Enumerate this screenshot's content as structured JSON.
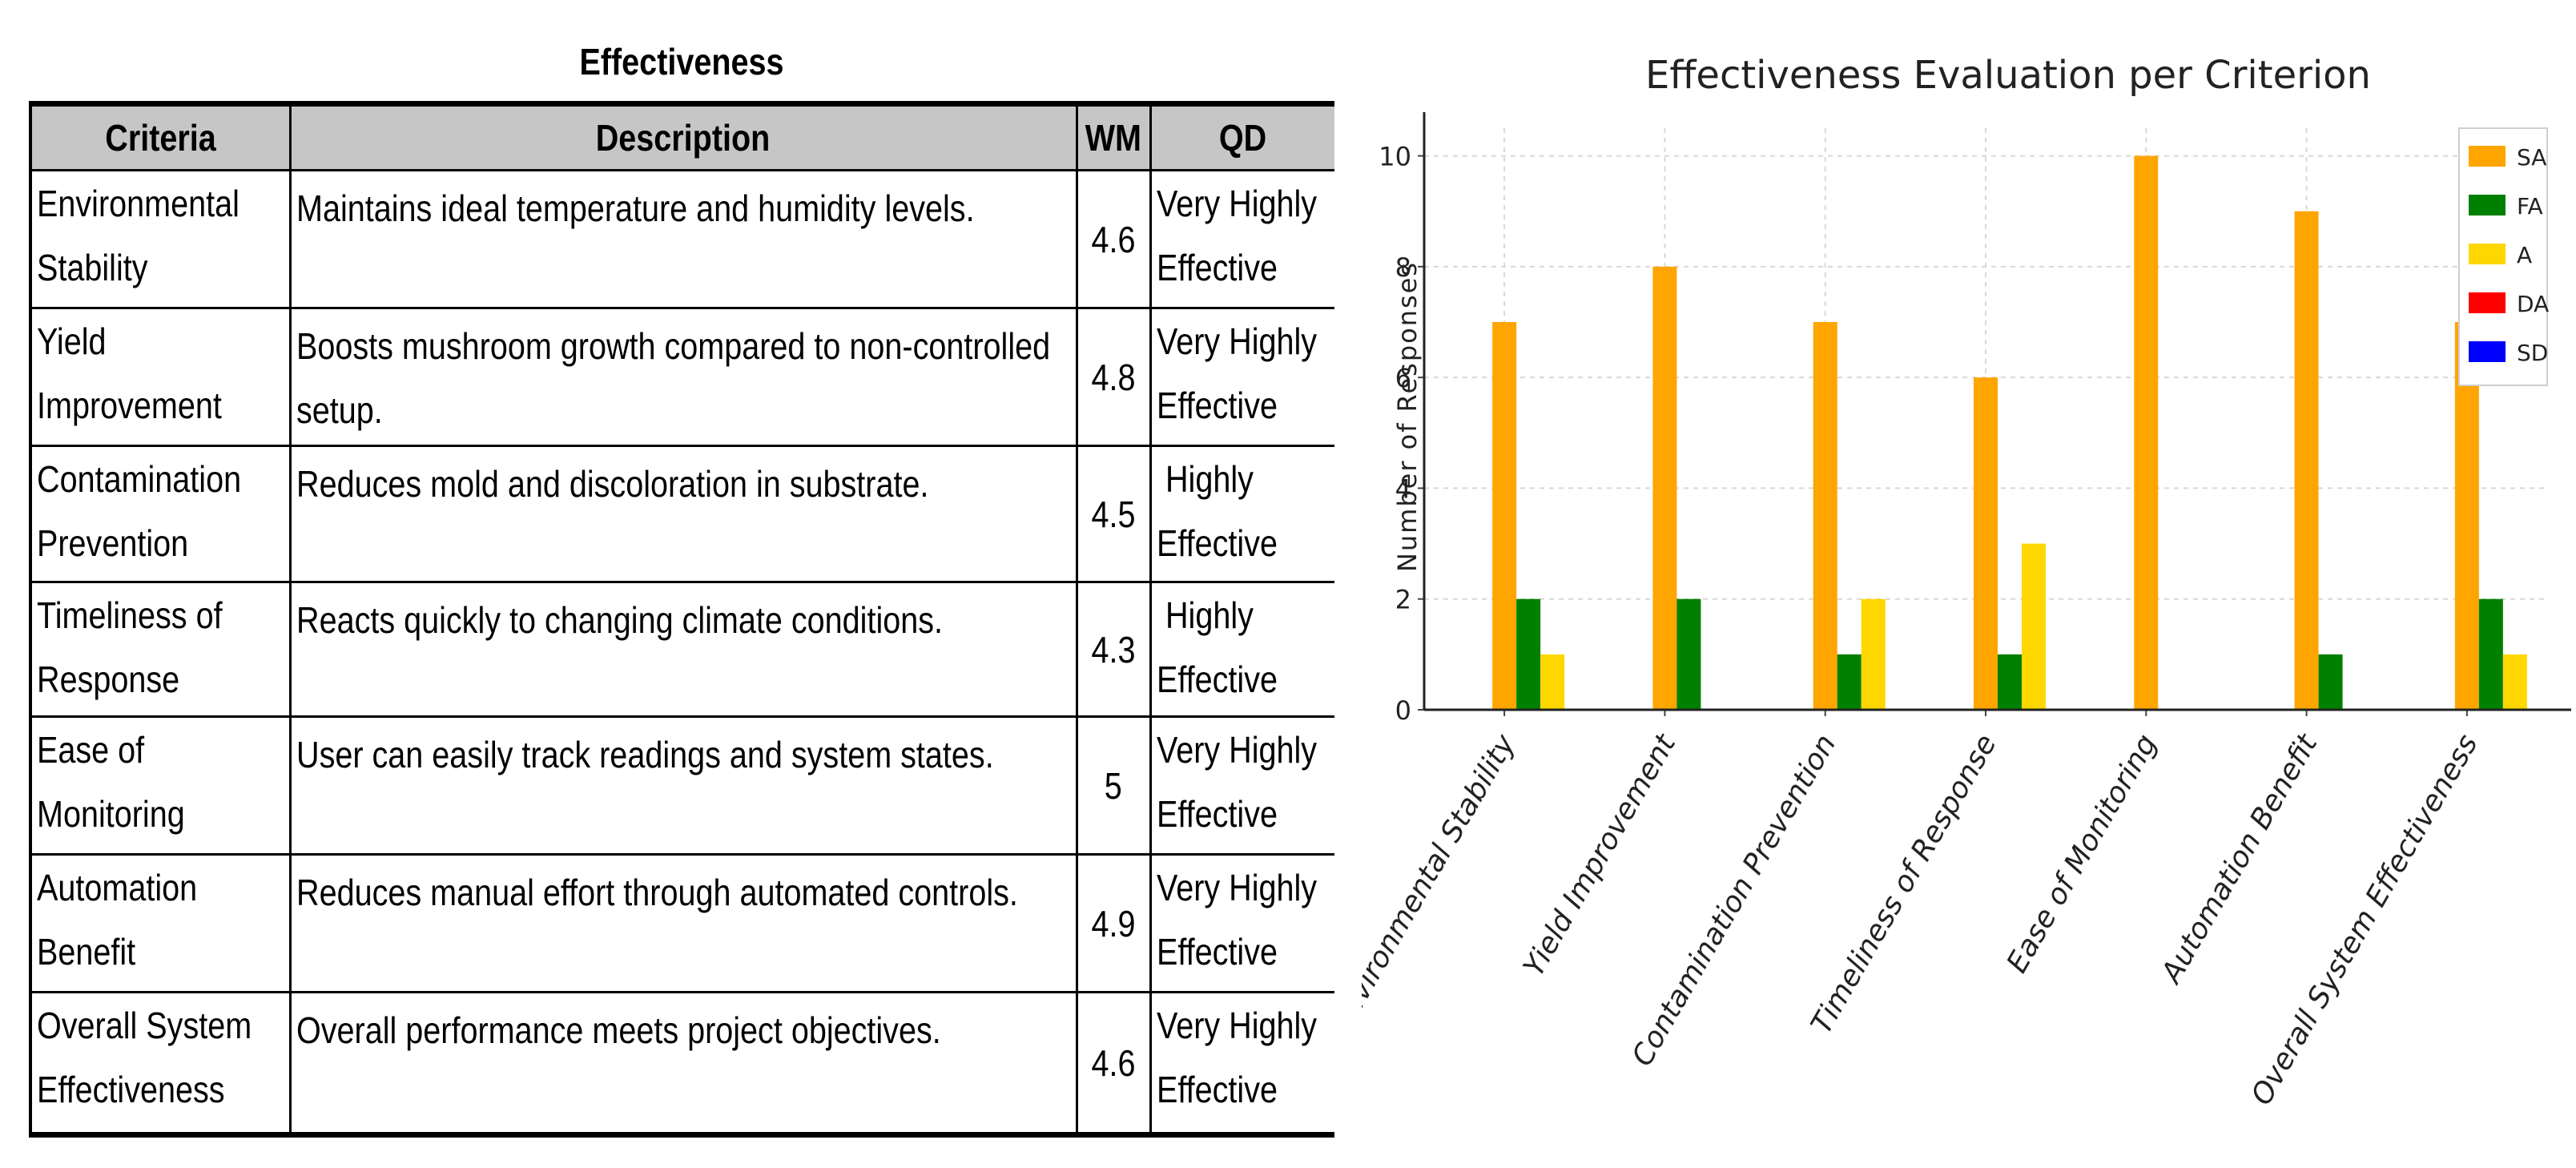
{
  "table": {
    "title": "Effectiveness",
    "headers": {
      "criteria": "Criteria",
      "description": "Description",
      "wm": "WM",
      "qd": "QD"
    },
    "rows": [
      {
        "criteria_line1": "Environmental",
        "criteria_line2": "Stability",
        "description": "Maintains ideal temperature and humidity levels.",
        "wm": "4.6",
        "qd_line1": "Very Highly",
        "qd_line2": "Effective"
      },
      {
        "criteria_line1": "Yield",
        "criteria_line2": "Improvement",
        "description": "Boosts mushroom growth compared to non-controlled setup.",
        "wm": "4.8",
        "qd_line1": "Very Highly",
        "qd_line2": "Effective"
      },
      {
        "criteria_line1": "Contamination",
        "criteria_line2": "Prevention",
        "description": "Reduces mold and discoloration in substrate.",
        "wm": "4.5",
        "qd_line1": " Highly",
        "qd_line2": "Effective"
      },
      {
        "criteria_line1": "Timeliness of",
        "criteria_line2": "Response",
        "description": "Reacts quickly to changing climate conditions.",
        "wm": "4.3",
        "qd_line1": " Highly",
        "qd_line2": "Effective"
      },
      {
        "criteria_line1": "Ease of",
        "criteria_line2": "Monitoring",
        "description": "User can easily track readings and system states.",
        "wm": "5",
        "qd_line1": "Very Highly",
        "qd_line2": "Effective"
      },
      {
        "criteria_line1": "Automation",
        "criteria_line2": "Benefit",
        "description": "Reduces manual effort through automated controls.",
        "wm": "4.9",
        "qd_line1": "Very Highly",
        "qd_line2": "Effective"
      },
      {
        "criteria_line1": "Overall System",
        "criteria_line2": "Effectiveness",
        "description": "Overall performance meets project objectives.",
        "wm": "4.6",
        "qd_line1": "Very Highly",
        "qd_line2": "Effective"
      }
    ]
  },
  "chart_data": {
    "type": "bar",
    "title": "Effectiveness Evaluation per Criterion",
    "xlabel": "",
    "ylabel": "Number of Responses",
    "ylim": [
      0,
      10.5
    ],
    "yticks": [
      0,
      2,
      4,
      6,
      8,
      10
    ],
    "grid": true,
    "legend_position": "top-right",
    "categories": [
      "Environmental Stability",
      "Yield Improvement",
      "Contamination Prevention",
      "Timeliness of Response",
      "Ease of Monitoring",
      "Automation Benefit",
      "Overall System Effectiveness"
    ],
    "series": [
      {
        "name": "SA",
        "color": "#FFA500",
        "values": [
          7,
          8,
          7,
          6,
          10,
          9,
          7
        ]
      },
      {
        "name": "FA",
        "color": "#008000",
        "values": [
          2,
          2,
          1,
          1,
          0,
          1,
          2
        ]
      },
      {
        "name": "A",
        "color": "#FFD700",
        "values": [
          1,
          0,
          2,
          3,
          0,
          0,
          1
        ]
      },
      {
        "name": "DA",
        "color": "#FF0000",
        "values": [
          0,
          0,
          0,
          0,
          0,
          0,
          0
        ]
      },
      {
        "name": "SD",
        "color": "#0000FF",
        "values": [
          0,
          0,
          0,
          0,
          0,
          0,
          0
        ]
      }
    ]
  }
}
